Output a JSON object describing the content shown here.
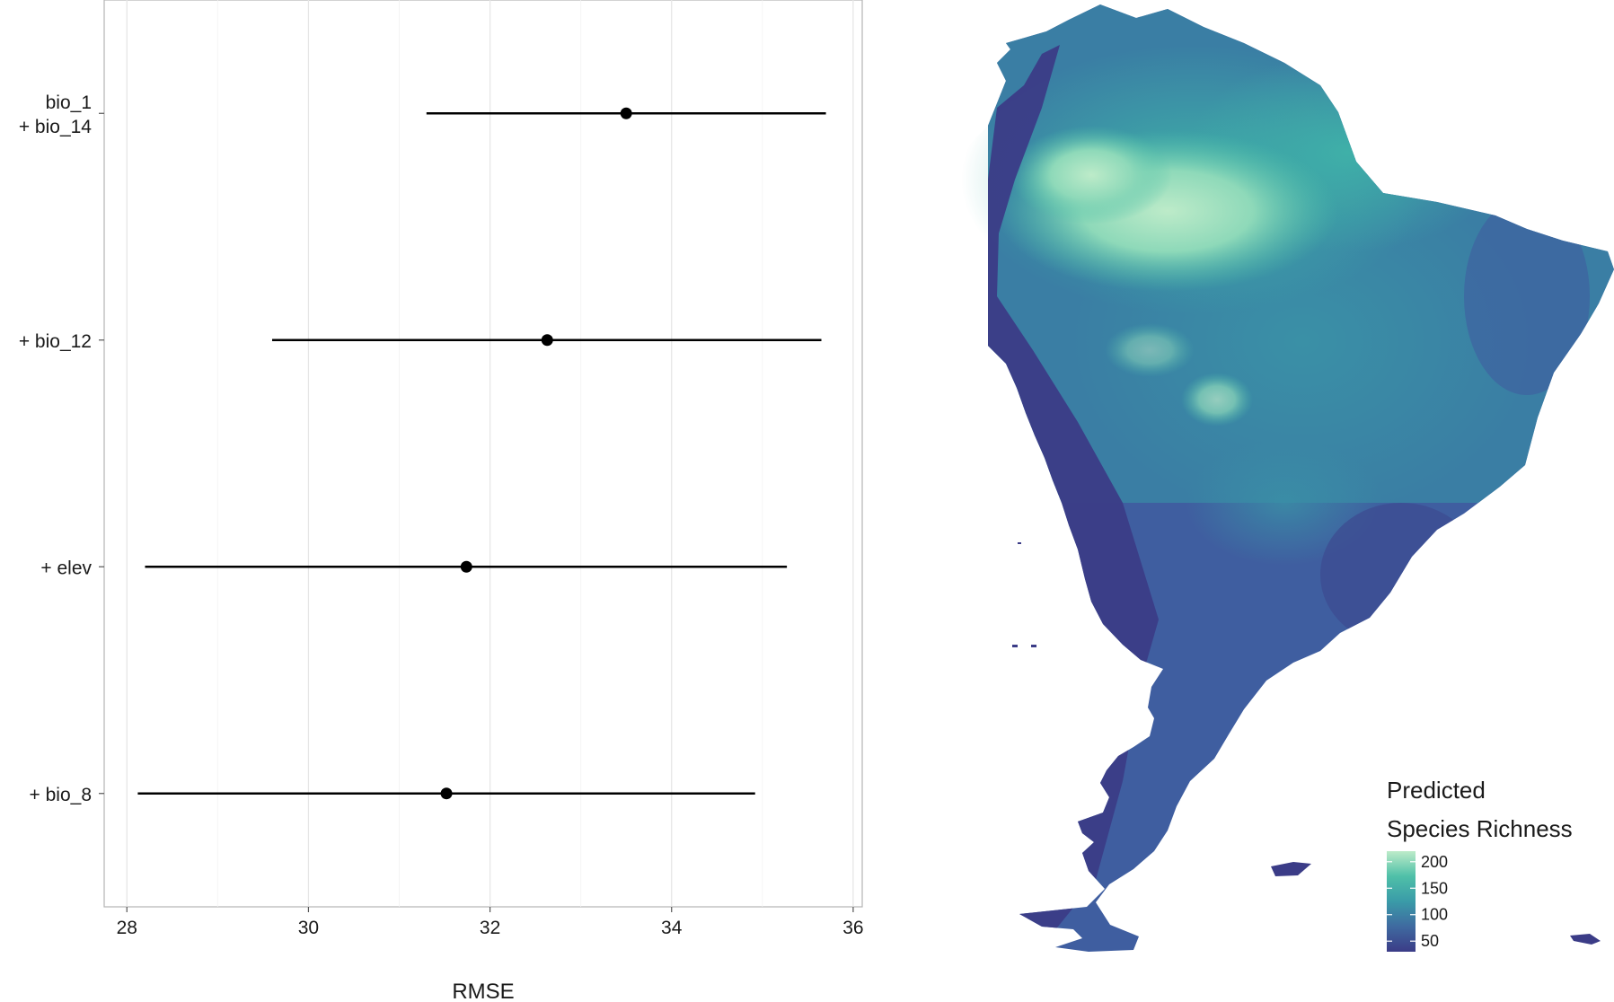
{
  "chart_data": {
    "type": "dot-errorbar",
    "xlabel": "RMSE",
    "ylabel": "",
    "xlim": [
      27.75,
      36.1
    ],
    "xticks": [
      28,
      30,
      32,
      34,
      36
    ],
    "grid": true,
    "categories": [
      {
        "label_lines": [
          "bio_1",
          "+ bio_14"
        ],
        "mean": 33.5,
        "low": 31.3,
        "high": 35.7
      },
      {
        "label_lines": [
          "+ bio_12"
        ],
        "mean": 32.63,
        "low": 29.6,
        "high": 35.65
      },
      {
        "label_lines": [
          "+ elev"
        ],
        "mean": 31.74,
        "low": 28.2,
        "high": 35.27
      },
      {
        "label_lines": [
          "+ bio_8"
        ],
        "mean": 31.52,
        "low": 28.12,
        "high": 34.92
      }
    ]
  },
  "map": {
    "subject": "South America",
    "legend": {
      "title_line1": "Predicted",
      "title_line2": "Species Richness",
      "ticks": [
        200,
        150,
        100,
        50
      ],
      "min": 30,
      "max": 220,
      "colors": [
        "#3b3c87",
        "#3f6aa0",
        "#3a9ba8",
        "#4fc0a8",
        "#bdebc9"
      ]
    }
  }
}
